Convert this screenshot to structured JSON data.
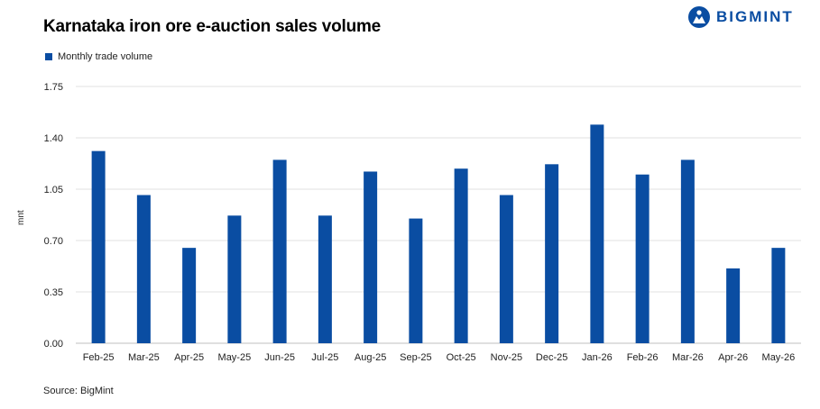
{
  "header": {
    "title": "Karnataka iron ore e-auction sales volume",
    "logo_text": "BIGMINT"
  },
  "legend": {
    "label": "Monthly trade volume"
  },
  "footer": {
    "source": "Source: BigMint"
  },
  "colors": {
    "bar": "#0A4DA2",
    "grid": "#e0e0e0",
    "brand": "#0A4DA2"
  },
  "chart_data": {
    "type": "bar",
    "ylabel": "mnt",
    "ylim": [
      0,
      1.75
    ],
    "yticks": [
      "0.00",
      "0.35",
      "0.70",
      "1.05",
      "1.40",
      "1.75"
    ],
    "grid": true,
    "legend_position": "top-left",
    "categories": [
      "Feb-25",
      "Mar-25",
      "Apr-25",
      "May-25",
      "Jun-25",
      "Jul-25",
      "Aug-25",
      "Sep-25",
      "Oct-25",
      "Nov-25",
      "Dec-25",
      "Jan-26",
      "Feb-26",
      "Mar-26",
      "Apr-26",
      "May-26"
    ],
    "series": [
      {
        "name": "Monthly trade volume",
        "values": [
          1.31,
          1.01,
          0.65,
          0.87,
          1.25,
          0.87,
          1.17,
          0.85,
          1.19,
          1.01,
          1.22,
          1.49,
          1.15,
          1.25,
          0.51,
          0.65
        ]
      }
    ]
  }
}
